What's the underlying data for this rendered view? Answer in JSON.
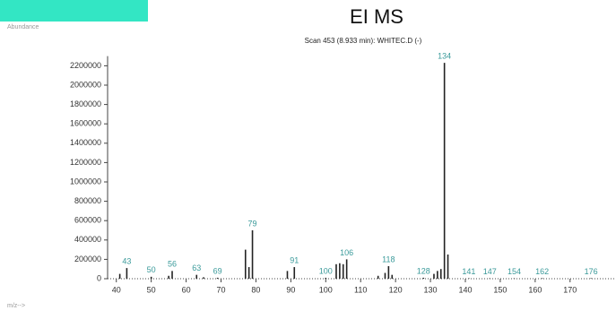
{
  "chart_data": {
    "type": "spectrum",
    "title": "EI MS",
    "subtitle": "Scan 453 (8.933 min): WHITEC.D (-)",
    "y_label": "Abundance",
    "x_label": "m/z-->",
    "x": [
      41,
      43,
      50,
      55,
      56,
      63,
      65,
      69,
      77,
      78,
      79,
      89,
      91,
      100,
      103,
      104,
      105,
      106,
      115,
      117,
      118,
      119,
      128,
      131,
      132,
      133,
      134,
      135,
      141,
      147,
      154,
      162,
      176
    ],
    "values": [
      50000,
      110000,
      20000,
      30000,
      80000,
      40000,
      15000,
      10000,
      300000,
      120000,
      500000,
      80000,
      120000,
      10000,
      150000,
      160000,
      150000,
      200000,
      30000,
      60000,
      130000,
      40000,
      10000,
      50000,
      80000,
      100000,
      2230000,
      250000,
      5000,
      5000,
      5000,
      5000,
      5000
    ],
    "peak_labels": [
      null,
      43,
      50,
      null,
      56,
      63,
      null,
      69,
      null,
      null,
      79,
      null,
      91,
      100,
      null,
      null,
      null,
      106,
      null,
      null,
      118,
      null,
      128,
      null,
      null,
      null,
      134,
      null,
      141,
      147,
      154,
      162,
      176
    ],
    "color": "#222222",
    "label_color": "#3a9a9a",
    "xlim": [
      37.5,
      182.9
    ],
    "ylim": [
      0,
      2300000
    ],
    "xticks": [
      40,
      50,
      60,
      70,
      80,
      90,
      100,
      110,
      120,
      130,
      140,
      150,
      160,
      170
    ],
    "yticks": [
      0,
      200000,
      400000,
      600000,
      800000,
      1000000,
      1200000,
      1400000,
      1600000,
      1800000,
      2000000,
      2200000
    ]
  }
}
